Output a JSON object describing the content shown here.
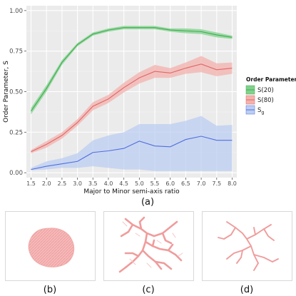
{
  "chart_data": {
    "type": "line",
    "xlabel": "Major to Minor semi-axis ratio",
    "ylabel": "Order Parameter, S",
    "xlim": [
      1.35,
      8.15
    ],
    "ylim": [
      -0.03,
      1.03
    ],
    "x_ticks": [
      "1.5",
      "2.0",
      "2.5",
      "3.0",
      "3.5",
      "4.0",
      "4.5",
      "5.0",
      "5.5",
      "6.0",
      "6.5",
      "7.0",
      "7.5",
      "8.0"
    ],
    "y_ticks": [
      "0.00",
      "0.25",
      "0.50",
      "0.75",
      "1.00"
    ],
    "grid": true,
    "background": "#ebebeb",
    "legend": {
      "title": "Order Parameter",
      "position": "right",
      "entries": [
        {
          "label": "S(20)"
        },
        {
          "label": "S(80)"
        },
        {
          "label": "S",
          "subscript": "g"
        }
      ]
    },
    "x": [
      1.5,
      2.0,
      2.5,
      3.0,
      3.5,
      4.0,
      4.5,
      5.0,
      5.5,
      6.0,
      6.5,
      7.0,
      7.5,
      8.0
    ],
    "series": [
      {
        "name": "S(20)",
        "color": "#3dae4b",
        "fill": "#82d18e",
        "values": [
          0.38,
          0.52,
          0.68,
          0.79,
          0.855,
          0.88,
          0.895,
          0.895,
          0.895,
          0.88,
          0.875,
          0.87,
          0.85,
          0.835
        ],
        "lower": [
          0.36,
          0.5,
          0.665,
          0.78,
          0.845,
          0.87,
          0.885,
          0.885,
          0.885,
          0.87,
          0.86,
          0.855,
          0.835,
          0.825
        ],
        "upper": [
          0.4,
          0.54,
          0.695,
          0.8,
          0.865,
          0.89,
          0.905,
          0.905,
          0.905,
          0.89,
          0.89,
          0.885,
          0.865,
          0.845
        ]
      },
      {
        "name": "S(80)",
        "color": "#e06666",
        "fill": "#f3b2ae",
        "values": [
          0.13,
          0.175,
          0.23,
          0.31,
          0.41,
          0.455,
          0.525,
          0.585,
          0.625,
          0.615,
          0.645,
          0.67,
          0.635,
          0.645
        ],
        "lower": [
          0.12,
          0.155,
          0.21,
          0.29,
          0.385,
          0.43,
          0.495,
          0.55,
          0.585,
          0.585,
          0.61,
          0.62,
          0.595,
          0.61
        ],
        "upper": [
          0.14,
          0.195,
          0.25,
          0.33,
          0.435,
          0.48,
          0.555,
          0.62,
          0.665,
          0.645,
          0.68,
          0.72,
          0.675,
          0.68
        ]
      },
      {
        "name": "Sg",
        "color": "#4f6fe0",
        "fill": "#bccdf1",
        "values": [
          0.02,
          0.04,
          0.055,
          0.07,
          0.125,
          0.135,
          0.15,
          0.195,
          0.165,
          0.16,
          0.205,
          0.225,
          0.2,
          0.2
        ],
        "lower": [
          0.015,
          0.02,
          0.03,
          0.03,
          0.04,
          0.03,
          0.02,
          0.02,
          0.01,
          0.01,
          0.01,
          0.01,
          0.01,
          0.01
        ],
        "upper": [
          0.03,
          0.07,
          0.09,
          0.12,
          0.2,
          0.23,
          0.25,
          0.3,
          0.3,
          0.3,
          0.32,
          0.35,
          0.29,
          0.295
        ]
      }
    ]
  },
  "captions": {
    "a": "(a)",
    "b": "(b)",
    "c": "(c)",
    "d": "(d)"
  }
}
